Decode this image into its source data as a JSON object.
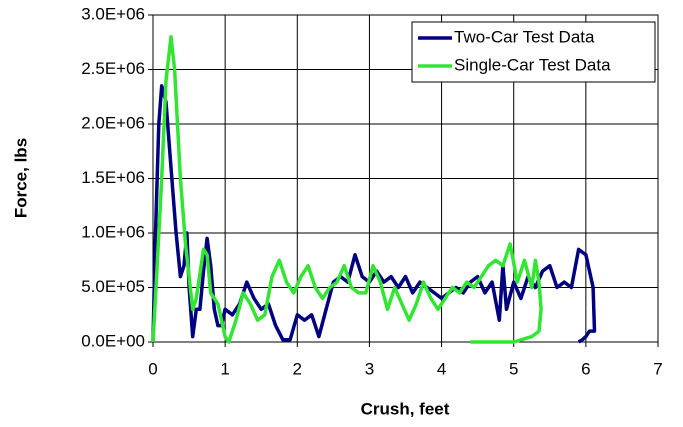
{
  "chart_data": {
    "type": "line",
    "xlabel": "Crush, feet",
    "ylabel": "Force, lbs",
    "xlim": [
      0,
      7
    ],
    "xticks": [
      0,
      1,
      2,
      3,
      4,
      5,
      6,
      7
    ],
    "ylim": [
      0,
      3000000
    ],
    "yticks": [
      {
        "value": 0,
        "label": "0.0E+00"
      },
      {
        "value": 500000,
        "label": "5.0E+05"
      },
      {
        "value": 1000000,
        "label": "1.0E+06"
      },
      {
        "value": 1500000,
        "label": "1.5E+06"
      },
      {
        "value": 2000000,
        "label": "2.0E+06"
      },
      {
        "value": 2500000,
        "label": "2.5E+06"
      },
      {
        "value": 3000000,
        "label": "3.0E+06"
      }
    ],
    "grid": true,
    "legend": "upper right",
    "series": [
      {
        "name": "Two-Car Test Data",
        "color": "#000080",
        "x": [
          0,
          0.03,
          0.08,
          0.12,
          0.18,
          0.25,
          0.32,
          0.38,
          0.43,
          0.47,
          0.5,
          0.55,
          0.6,
          0.65,
          0.7,
          0.75,
          0.8,
          0.85,
          0.9,
          0.95,
          1.0,
          1.1,
          1.2,
          1.3,
          1.4,
          1.5,
          1.6,
          1.7,
          1.8,
          1.9,
          2.0,
          2.1,
          2.2,
          2.3,
          2.4,
          2.5,
          2.6,
          2.7,
          2.8,
          2.9,
          3.0,
          3.1,
          3.2,
          3.3,
          3.4,
          3.5,
          3.6,
          3.7,
          3.8,
          3.9,
          4.0,
          4.1,
          4.2,
          4.3,
          4.4,
          4.5,
          4.6,
          4.7,
          4.8,
          4.85,
          4.9,
          5.0,
          5.1,
          5.2,
          5.3,
          5.4,
          5.5,
          5.6,
          5.7,
          5.8,
          5.9,
          6.0,
          6.05,
          6.1,
          6.12,
          6.05,
          6.0,
          5.95,
          5.9
        ],
        "values": [
          0,
          900000,
          2000000,
          2350000,
          2200000,
          1600000,
          1000000,
          600000,
          700000,
          1000000,
          500000,
          50000,
          300000,
          300000,
          650000,
          950000,
          700000,
          300000,
          150000,
          150000,
          300000,
          250000,
          350000,
          550000,
          400000,
          300000,
          350000,
          150000,
          20000,
          20000,
          250000,
          200000,
          250000,
          50000,
          300000,
          550000,
          600000,
          550000,
          800000,
          600000,
          550000,
          650000,
          550000,
          600000,
          500000,
          600000,
          450000,
          550000,
          500000,
          450000,
          400000,
          450000,
          500000,
          450000,
          550000,
          600000,
          450000,
          550000,
          200000,
          700000,
          300000,
          550000,
          400000,
          600000,
          500000,
          650000,
          700000,
          500000,
          550000,
          500000,
          850000,
          800000,
          650000,
          500000,
          100000,
          100000,
          50000,
          20000,
          0
        ]
      },
      {
        "name": "Single-Car Test Data",
        "color": "#33e533",
        "x": [
          0,
          0.05,
          0.12,
          0.18,
          0.25,
          0.3,
          0.38,
          0.45,
          0.5,
          0.55,
          0.6,
          0.7,
          0.75,
          0.8,
          0.9,
          1.0,
          1.05,
          1.15,
          1.25,
          1.35,
          1.45,
          1.55,
          1.65,
          1.75,
          1.85,
          1.95,
          2.05,
          2.15,
          2.25,
          2.35,
          2.45,
          2.55,
          2.65,
          2.75,
          2.85,
          2.95,
          3.05,
          3.15,
          3.25,
          3.35,
          3.45,
          3.55,
          3.65,
          3.75,
          3.85,
          3.95,
          4.05,
          4.15,
          4.25,
          4.35,
          4.45,
          4.55,
          4.65,
          4.75,
          4.85,
          4.95,
          5.05,
          5.15,
          5.25,
          5.3,
          5.35,
          5.38,
          5.35,
          5.25,
          5.0,
          4.7,
          4.4
        ],
        "values": [
          0,
          600000,
          1500000,
          2400000,
          2800000,
          2500000,
          1500000,
          900000,
          600000,
          300000,
          400000,
          850000,
          800000,
          450000,
          350000,
          50000,
          0,
          200000,
          450000,
          350000,
          200000,
          250000,
          600000,
          750000,
          550000,
          450000,
          600000,
          700000,
          500000,
          400000,
          500000,
          550000,
          700000,
          500000,
          450000,
          450000,
          700000,
          550000,
          300000,
          500000,
          350000,
          200000,
          350000,
          550000,
          400000,
          300000,
          400000,
          500000,
          450000,
          550000,
          500000,
          600000,
          700000,
          750000,
          700000,
          900000,
          550000,
          750000,
          500000,
          750000,
          550000,
          300000,
          100000,
          50000,
          0,
          0,
          0
        ]
      }
    ]
  }
}
